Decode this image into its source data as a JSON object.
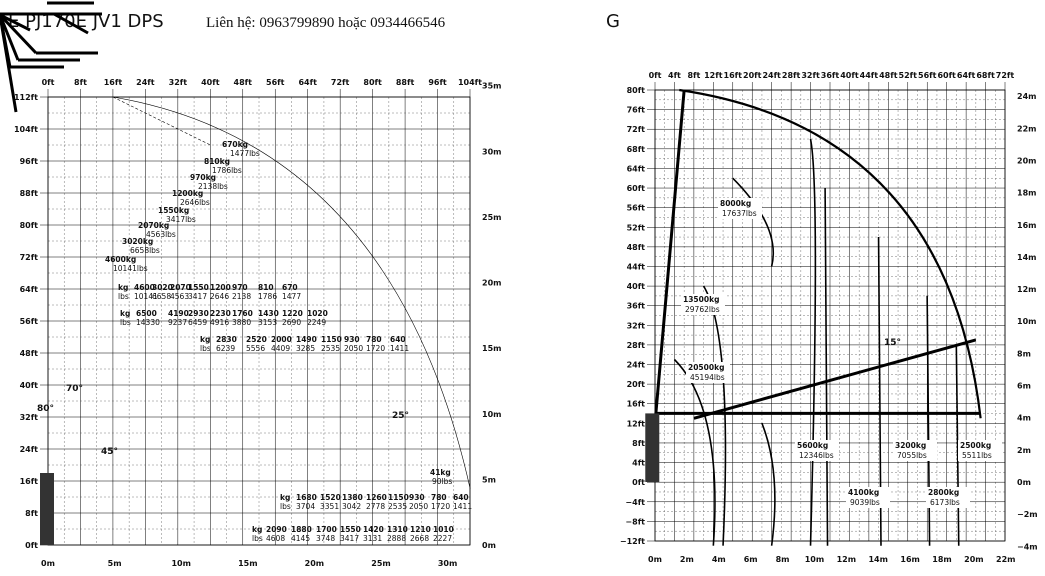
{
  "left_chart": {
    "title": "E PJ170E JV1 DPS",
    "contact": "Liên hệ: 0963799890 hoặc 0934466546",
    "top_axis": [
      "0ft",
      "8ft",
      "16ft",
      "24ft",
      "32ft",
      "40ft",
      "48ft",
      "56ft",
      "64ft",
      "72ft",
      "80ft",
      "88ft",
      "96ft",
      "104ft"
    ],
    "left_axis": [
      "112ft",
      "104ft",
      "96ft",
      "88ft",
      "80ft",
      "72ft",
      "64ft",
      "56ft",
      "48ft",
      "40ft",
      "32ft",
      "24ft",
      "16ft",
      "8ft",
      "0ft"
    ],
    "bottom_axis": [
      "0m",
      "5m",
      "10m",
      "15m",
      "20m",
      "25m",
      "30m"
    ],
    "right_axis": [
      "35m",
      "30m",
      "25m",
      "20m",
      "15m",
      "10m",
      "5m",
      "0m"
    ],
    "angles": [
      "80°",
      "70°",
      "45°",
      "25°"
    ],
    "diagonal_loads": [
      {
        "kg": "670kg",
        "lbs": "1477lbs"
      },
      {
        "kg": "810kg",
        "lbs": "1786lbs"
      },
      {
        "kg": "970kg",
        "lbs": "2138lbs"
      },
      {
        "kg": "1200kg",
        "lbs": "2646lbs"
      },
      {
        "kg": "1550kg",
        "lbs": "3417lbs"
      },
      {
        "kg": "2070kg",
        "lbs": "4563lbs"
      },
      {
        "kg": "3020kg",
        "lbs": "6658lbs"
      },
      {
        "kg": "4600kg",
        "lbs": "10141lbs"
      }
    ],
    "rows": [
      {
        "unit_kg": "kg",
        "unit_lbs": "lbs",
        "kg": [
          "4600",
          "3020",
          "2070",
          "1550",
          "1200",
          "970",
          "810",
          "670"
        ],
        "lbs": [
          "10141",
          "6658",
          "4563",
          "3417",
          "2646",
          "2138",
          "1786",
          "1477"
        ]
      },
      {
        "unit_kg": "kg",
        "unit_lbs": "lbs",
        "kg": [
          "6500",
          "4190",
          "2930",
          "2230",
          "1760",
          "1430",
          "1220",
          "1020"
        ],
        "lbs": [
          "14330",
          "9237",
          "6459",
          "4916",
          "3880",
          "3153",
          "2690",
          "2249"
        ]
      },
      {
        "unit_kg": "kg",
        "unit_lbs": "lbs",
        "kg": [
          "2830",
          "2520",
          "2000",
          "1490",
          "1150",
          "930",
          "780",
          "640"
        ],
        "lbs": [
          "6239",
          "5556",
          "4409",
          "3285",
          "2535",
          "2050",
          "1720",
          "1411"
        ]
      },
      {
        "unit_kg": "kg",
        "unit_lbs": "lbs",
        "kg": [
          "1680",
          "1520",
          "1380",
          "1260",
          "1150",
          "930",
          "780",
          "640"
        ],
        "lbs": [
          "3704",
          "3351",
          "3042",
          "2778",
          "2535",
          "2050",
          "1720",
          "1411"
        ]
      },
      {
        "unit_kg": "kg",
        "unit_lbs": "lbs",
        "kg": [
          "2090",
          "1880",
          "1700",
          "1550",
          "1420",
          "1310",
          "1210",
          "1010"
        ],
        "lbs": [
          "4608",
          "4145",
          "3748",
          "3417",
          "3131",
          "2888",
          "2668",
          "2227"
        ]
      }
    ],
    "end_load": {
      "kg": "41kg",
      "lbs": "90lbs"
    }
  },
  "right_chart": {
    "title": "G",
    "top_axis": [
      "0ft",
      "4ft",
      "8ft",
      "12ft",
      "16ft",
      "20ft",
      "24ft",
      "28ft",
      "32ft",
      "36ft",
      "40ft",
      "44ft",
      "48ft",
      "52ft",
      "56ft",
      "60ft",
      "64ft",
      "68ft",
      "72ft"
    ],
    "left_axis": [
      "80ft",
      "76ft",
      "72ft",
      "68ft",
      "64ft",
      "60ft",
      "56ft",
      "52ft",
      "48ft",
      "44ft",
      "40ft",
      "36ft",
      "32ft",
      "28ft",
      "24ft",
      "20ft",
      "16ft",
      "12ft",
      "8ft",
      "4ft",
      "0ft",
      "−4ft",
      "−8ft",
      "−12ft"
    ],
    "bottom_axis": [
      "0m",
      "2m",
      "4m",
      "6m",
      "8m",
      "10m",
      "12m",
      "14m",
      "16m",
      "18m",
      "20m",
      "22m"
    ],
    "right_axis": [
      "24m",
      "22m",
      "20m",
      "18m",
      "16m",
      "14m",
      "12m",
      "10m",
      "8m",
      "6m",
      "4m",
      "2m",
      "0m",
      "−2m",
      "−4m"
    ],
    "angle": "15°",
    "loads": [
      {
        "kg": "8000kg",
        "lbs": "17637lbs"
      },
      {
        "kg": "13500kg",
        "lbs": "29762lbs"
      },
      {
        "kg": "20500kg",
        "lbs": "45194lbs"
      },
      {
        "kg": "5600kg",
        "lbs": "12346lbs"
      },
      {
        "kg": "3200kg",
        "lbs": "7055lbs"
      },
      {
        "kg": "2500kg",
        "lbs": "5511lbs"
      },
      {
        "kg": "4100kg",
        "lbs": "9039lbs"
      },
      {
        "kg": "2800kg",
        "lbs": "6173lbs"
      }
    ]
  }
}
